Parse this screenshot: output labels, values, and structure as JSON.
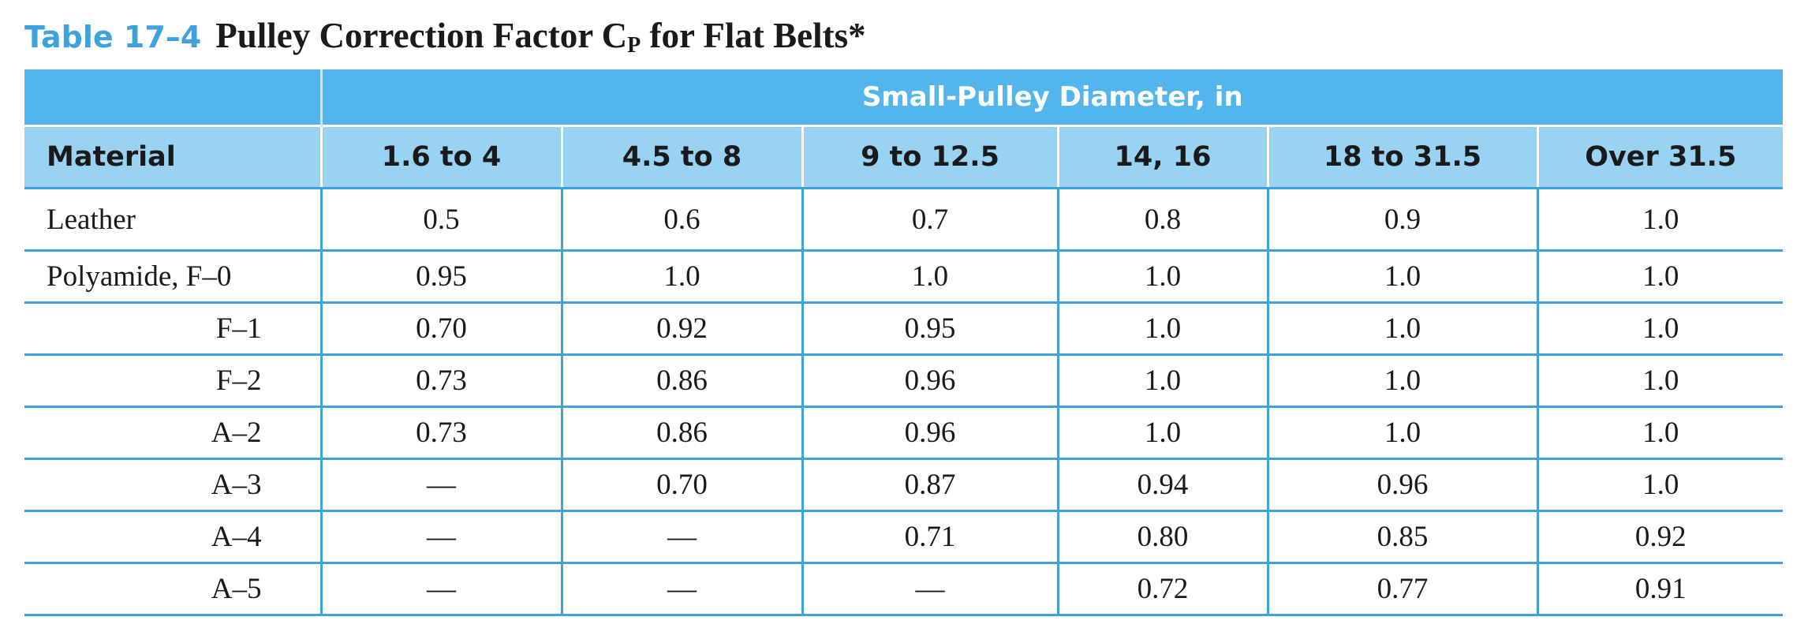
{
  "title": {
    "number": "Table 17–4",
    "text": "Pulley Correction Factor C",
    "subscript": "P",
    "suffix": " for Flat Belts*"
  },
  "table": {
    "group_header": "Small-Pulley Diameter, in",
    "columns": [
      "Material",
      "1.6 to 4",
      "4.5 to 8",
      "9 to 12.5",
      "14, 16",
      "18 to 31.5",
      "Over 31.5"
    ],
    "rows": [
      {
        "material": "Leather",
        "values": [
          "0.5",
          "0.6",
          "0.7",
          "0.8",
          "0.9",
          "1.0"
        ]
      },
      {
        "material": "Polyamide, F–0",
        "values": [
          "0.95",
          "1.0",
          "1.0",
          "1.0",
          "1.0",
          "1.0"
        ]
      },
      {
        "material": "F–1",
        "values": [
          "0.70",
          "0.92",
          "0.95",
          "1.0",
          "1.0",
          "1.0"
        ]
      },
      {
        "material": "F–2",
        "values": [
          "0.73",
          "0.86",
          "0.96",
          "1.0",
          "1.0",
          "1.0"
        ]
      },
      {
        "material": "A–2",
        "values": [
          "0.73",
          "0.86",
          "0.96",
          "1.0",
          "1.0",
          "1.0"
        ]
      },
      {
        "material": "A–3",
        "values": [
          "—",
          "0.70",
          "0.87",
          "0.94",
          "0.96",
          "1.0"
        ]
      },
      {
        "material": "A–4",
        "values": [
          "—",
          "—",
          "0.71",
          "0.80",
          "0.85",
          "0.92"
        ]
      },
      {
        "material": "A–5",
        "values": [
          "—",
          "—",
          "—",
          "0.72",
          "0.77",
          "0.91"
        ]
      }
    ]
  }
}
